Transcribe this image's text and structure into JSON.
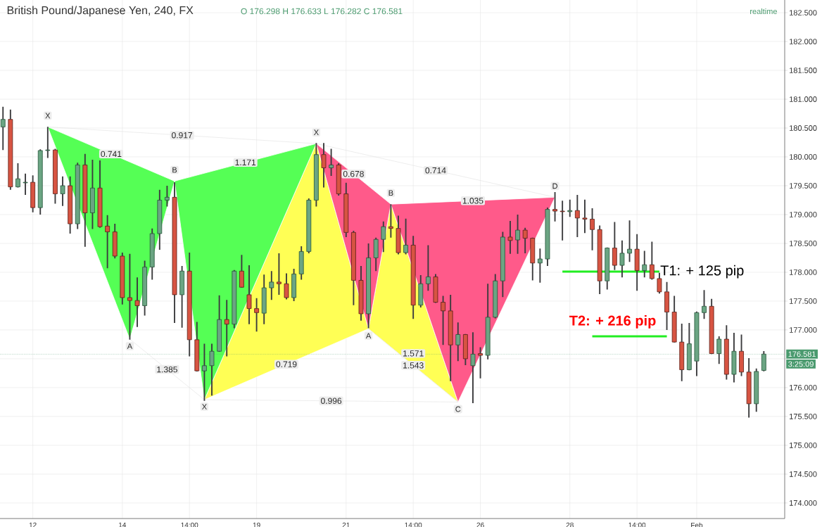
{
  "chart_data": {
    "type": "candlestick",
    "title": "British Pound/Japanese Yen, 240, FX",
    "subtitle": "O 176.298 H 176.633 L 176.282 C 176.581",
    "categories": [
      null,
      null,
      null,
      null,
      "12",
      null,
      null,
      null,
      null,
      null,
      null,
      null,
      null,
      null,
      null,
      null,
      "14",
      null,
      null,
      null,
      null,
      null,
      null,
      null,
      null,
      "14:00",
      null,
      null,
      null,
      null,
      null,
      null,
      null,
      null,
      "19",
      null,
      null,
      null,
      null,
      null,
      null,
      null,
      null,
      null,
      null,
      null,
      "21",
      null,
      null,
      null,
      null,
      null,
      null,
      null,
      null,
      "14:00",
      null,
      null,
      null,
      null,
      null,
      null,
      null,
      null,
      "26",
      null,
      null,
      null,
      null,
      null,
      null,
      null,
      null,
      null,
      null,
      null,
      "28",
      null,
      null,
      null,
      null,
      null,
      null,
      null,
      null,
      "14:00",
      null,
      null,
      null,
      null,
      null,
      null,
      null,
      "Feb",
      null,
      null,
      null,
      null,
      null,
      null,
      null,
      null,
      null
    ],
    "ohlc": [
      [
        180.52,
        180.87,
        180.12,
        180.65
      ],
      [
        180.65,
        180.82,
        179.43,
        179.48
      ],
      [
        179.48,
        179.89,
        179.47,
        179.62
      ],
      [
        179.55,
        179.71,
        179.34,
        179.56
      ],
      [
        179.56,
        179.68,
        179.04,
        179.12
      ],
      [
        179.12,
        180.13,
        179.0,
        180.11
      ],
      [
        180.11,
        180.52,
        179.98,
        180.12
      ],
      [
        180.12,
        180.14,
        179.19,
        179.36
      ],
      [
        179.36,
        179.66,
        179.15,
        179.5
      ],
      [
        179.5,
        179.66,
        178.67,
        178.84
      ],
      [
        178.84,
        179.9,
        178.75,
        179.86
      ],
      [
        179.86,
        180.05,
        178.44,
        179.03
      ],
      [
        179.03,
        179.95,
        178.75,
        179.46
      ],
      [
        179.46,
        179.94,
        178.77,
        178.79
      ],
      [
        178.8,
        178.99,
        178.07,
        178.7
      ],
      [
        178.7,
        178.84,
        178.24,
        178.28
      ],
      [
        178.28,
        178.34,
        177.44,
        177.56
      ],
      [
        177.56,
        178.32,
        176.83,
        177.51
      ],
      [
        177.51,
        177.91,
        177.05,
        177.42
      ],
      [
        177.42,
        178.2,
        177.25,
        178.09
      ],
      [
        178.09,
        178.76,
        177.87,
        178.67
      ],
      [
        178.67,
        179.43,
        178.39,
        179.25
      ],
      [
        179.25,
        179.5,
        179.14,
        179.3
      ],
      [
        179.3,
        179.56,
        177.12,
        177.61
      ],
      [
        177.61,
        178.11,
        177.04,
        178.02
      ],
      [
        178.02,
        178.34,
        176.54,
        176.83
      ],
      [
        176.83,
        177.14,
        176.28,
        176.29
      ],
      [
        176.29,
        176.76,
        175.77,
        176.38
      ],
      [
        176.38,
        176.76,
        175.86,
        176.63
      ],
      [
        176.63,
        177.6,
        176.62,
        177.18
      ],
      [
        177.18,
        177.52,
        176.54,
        177.1
      ],
      [
        177.1,
        178.04,
        177.03,
        178.02
      ],
      [
        178.02,
        178.3,
        177.73,
        177.74
      ],
      [
        177.61,
        178.12,
        177.1,
        177.37
      ],
      [
        177.37,
        177.55,
        176.97,
        177.3
      ],
      [
        177.29,
        177.96,
        177.1,
        177.73
      ],
      [
        177.73,
        178.02,
        177.52,
        177.83
      ],
      [
        177.83,
        178.33,
        177.61,
        177.8
      ],
      [
        177.8,
        177.98,
        177.53,
        177.56
      ],
      [
        177.56,
        178.06,
        177.5,
        177.97
      ],
      [
        177.97,
        178.45,
        177.87,
        178.36
      ],
      [
        178.36,
        179.28,
        178.33,
        179.25
      ],
      [
        179.25,
        180.24,
        179.14,
        180.04
      ],
      [
        180.04,
        180.24,
        179.47,
        179.81
      ],
      [
        179.81,
        180.14,
        179.67,
        179.86
      ],
      [
        179.86,
        179.89,
        179.33,
        179.36
      ],
      [
        179.36,
        179.55,
        178.61,
        178.69
      ],
      [
        178.69,
        178.72,
        177.43,
        177.86
      ],
      [
        177.86,
        178.11,
        177.16,
        177.28
      ],
      [
        177.28,
        178.5,
        177.03,
        178.25
      ],
      [
        178.25,
        178.6,
        178.02,
        178.57
      ],
      [
        178.57,
        178.88,
        178.35,
        178.79
      ],
      [
        178.79,
        179.18,
        178.6,
        178.76
      ],
      [
        178.76,
        178.98,
        178.31,
        178.34
      ],
      [
        178.34,
        178.93,
        178.31,
        178.47
      ],
      [
        178.47,
        178.63,
        177.19,
        177.43
      ],
      [
        177.43,
        177.95,
        177.39,
        177.8
      ],
      [
        177.8,
        178.47,
        177.68,
        177.92
      ],
      [
        177.92,
        177.97,
        177.47,
        177.48
      ],
      [
        177.48,
        177.59,
        176.74,
        177.33
      ],
      [
        177.33,
        177.61,
        176.11,
        176.74
      ],
      [
        176.74,
        177.13,
        176.46,
        176.92
      ],
      [
        176.92,
        176.93,
        176.39,
        176.5
      ],
      [
        176.38,
        176.96,
        175.73,
        176.58
      ],
      [
        176.59,
        176.7,
        176.16,
        176.56
      ],
      [
        176.56,
        177.8,
        176.49,
        177.22
      ],
      [
        177.22,
        177.97,
        177.2,
        177.85
      ],
      [
        177.85,
        178.7,
        177.57,
        178.61
      ],
      [
        178.61,
        178.89,
        178.32,
        178.55
      ],
      [
        178.56,
        179.0,
        178.32,
        178.73
      ],
      [
        178.73,
        178.77,
        178.33,
        178.59
      ],
      [
        178.59,
        178.6,
        177.86,
        178.16
      ],
      [
        178.16,
        178.41,
        177.82,
        178.23
      ],
      [
        178.23,
        179.12,
        178.11,
        179.09
      ],
      [
        179.09,
        179.39,
        178.88,
        179.06
      ],
      [
        179.06,
        179.24,
        178.55,
        179.05
      ],
      [
        179.05,
        179.26,
        178.96,
        179.07
      ],
      [
        179.07,
        179.34,
        178.61,
        178.94
      ],
      [
        178.94,
        179.26,
        178.68,
        178.92
      ],
      [
        178.92,
        179.11,
        178.38,
        178.74
      ],
      [
        178.74,
        178.81,
        177.62,
        177.85
      ],
      [
        177.85,
        178.43,
        177.7,
        178.42
      ],
      [
        178.42,
        178.87,
        178.04,
        178.12
      ],
      [
        178.12,
        178.55,
        177.91,
        178.33
      ],
      [
        178.33,
        178.9,
        178.18,
        178.4
      ],
      [
        178.4,
        178.66,
        177.68,
        178.03
      ],
      [
        178.03,
        178.37,
        177.91,
        178.13
      ],
      [
        178.13,
        178.53,
        177.87,
        177.89
      ],
      [
        177.89,
        177.99,
        177.63,
        177.66
      ],
      [
        177.66,
        177.83,
        177.0,
        177.31
      ],
      [
        177.31,
        177.59,
        176.78,
        176.79
      ],
      [
        176.79,
        177.11,
        176.11,
        176.31
      ],
      [
        176.31,
        177.12,
        176.3,
        176.76
      ],
      [
        176.46,
        177.32,
        176.2,
        177.3
      ],
      [
        177.3,
        177.69,
        177.19,
        177.41
      ],
      [
        177.41,
        177.54,
        176.58,
        176.59
      ],
      [
        176.59,
        176.89,
        176.41,
        176.84
      ],
      [
        176.84,
        177.08,
        176.14,
        176.23
      ],
      [
        176.23,
        176.95,
        176.09,
        176.63
      ],
      [
        176.63,
        176.92,
        176.2,
        176.27
      ],
      [
        176.27,
        176.51,
        175.48,
        175.72
      ],
      [
        175.72,
        176.33,
        175.58,
        176.28
      ],
      [
        176.298,
        176.633,
        176.282,
        176.581
      ]
    ],
    "ylim": [
      173.73,
      182.72
    ],
    "yticks": [
      {
        "value": 174,
        "label": "174.000"
      },
      {
        "value": 174.5,
        "label": "174.500"
      },
      {
        "value": 175,
        "label": "175.000"
      },
      {
        "value": 175.5,
        "label": "175.500"
      },
      {
        "value": 176,
        "label": "176.000"
      },
      {
        "value": 176.5,
        "label": null
      },
      {
        "value": 177,
        "label": "177.000"
      },
      {
        "value": 177.5,
        "label": "177.500"
      },
      {
        "value": 178,
        "label": "178.000"
      },
      {
        "value": 178.5,
        "label": "178.500"
      },
      {
        "value": 179,
        "label": "179.000"
      },
      {
        "value": 179.5,
        "label": "179.500"
      },
      {
        "value": 180,
        "label": "180.000"
      },
      {
        "value": 180.5,
        "label": "180.500"
      },
      {
        "value": 181,
        "label": "181.000"
      },
      {
        "value": 181.5,
        "label": "181.500"
      },
      {
        "value": 182,
        "label": "182.000"
      },
      {
        "value": 182.5,
        "label": "182.500"
      }
    ],
    "grid": true,
    "series": [
      {
        "type": "area",
        "color": "#55ff55",
        "values": [
          null,
          null,
          null,
          null,
          null,
          null,
          180.52,
          null,
          null,
          null,
          null,
          null,
          null,
          null,
          null,
          null,
          null,
          176.84,
          null,
          null,
          null,
          null,
          null,
          179.58,
          null,
          null,
          null,
          175.79,
          null,
          null,
          null,
          null,
          null,
          null,
          null,
          null,
          null,
          null,
          null,
          null,
          null,
          null,
          180.23,
          null,
          null,
          null,
          null,
          null,
          null,
          null,
          null,
          null,
          null,
          null,
          null,
          null,
          null,
          null,
          null,
          null,
          null,
          null,
          null,
          null,
          null,
          null,
          null,
          null,
          null,
          null,
          null,
          null,
          null,
          null,
          null,
          null,
          null,
          null,
          null,
          null,
          null,
          null,
          null,
          null,
          null,
          null,
          null,
          null,
          null,
          null,
          null,
          null,
          null,
          null,
          null,
          null,
          null,
          null,
          null,
          null,
          null,
          null,
          null
        ]
      },
      {
        "type": "area",
        "color": "#ff5a8a",
        "values": [
          null,
          null,
          null,
          null,
          null,
          null,
          null,
          null,
          null,
          null,
          null,
          null,
          null,
          null,
          null,
          null,
          null,
          null,
          null,
          null,
          null,
          null,
          null,
          null,
          null,
          null,
          null,
          null,
          null,
          null,
          null,
          null,
          null,
          null,
          null,
          null,
          null,
          null,
          null,
          null,
          null,
          null,
          180.23,
          null,
          null,
          null,
          null,
          null,
          null,
          177.02,
          null,
          null,
          179.18,
          null,
          null,
          null,
          null,
          null,
          null,
          null,
          null,
          175.75,
          null,
          null,
          null,
          null,
          null,
          null,
          null,
          null,
          null,
          null,
          null,
          null,
          179.3,
          null,
          null,
          null,
          null,
          null,
          null,
          null,
          null,
          null,
          null,
          null,
          null,
          null,
          null,
          null,
          null,
          null,
          null,
          null,
          null,
          null,
          null,
          null,
          null,
          null,
          null,
          null,
          null
        ]
      },
      {
        "type": "area",
        "color": "#ffff55",
        "values": [
          null,
          null,
          null,
          null,
          null,
          null,
          null,
          null,
          null,
          null,
          null,
          null,
          null,
          null,
          null,
          null,
          null,
          null,
          null,
          null,
          null,
          null,
          null,
          null,
          null,
          null,
          null,
          175.79,
          null,
          null,
          null,
          null,
          null,
          null,
          null,
          null,
          null,
          null,
          null,
          null,
          null,
          null,
          180.23,
          null,
          null,
          null,
          null,
          null,
          null,
          177.02,
          null,
          null,
          179.18,
          null,
          null,
          null,
          null,
          null,
          null,
          null,
          null,
          175.75,
          null,
          null,
          null,
          null,
          null,
          null,
          null,
          null,
          null,
          null,
          null,
          null,
          null,
          null,
          null,
          null,
          null,
          null,
          null,
          null,
          null,
          null,
          null,
          null,
          null,
          null,
          null,
          null,
          null,
          null,
          null,
          null,
          null,
          null,
          null,
          null,
          null,
          null,
          null,
          null,
          null
        ]
      },
      {
        "type": "line",
        "color": "#22ee22",
        "values": [
          null,
          null,
          null,
          null,
          null,
          null,
          null,
          null,
          null,
          null,
          null,
          null,
          null,
          null,
          null,
          null,
          null,
          null,
          null,
          null,
          null,
          null,
          null,
          null,
          null,
          null,
          null,
          null,
          null,
          null,
          null,
          null,
          null,
          null,
          null,
          null,
          null,
          null,
          null,
          null,
          null,
          null,
          null,
          null,
          null,
          null,
          null,
          null,
          null,
          null,
          null,
          null,
          null,
          null,
          null,
          null,
          null,
          null,
          null,
          null,
          null,
          null,
          null,
          null,
          null,
          null,
          null,
          null,
          null,
          null,
          null,
          null,
          null,
          null,
          null,
          178.01,
          null,
          null,
          null,
          null,
          null,
          null,
          null,
          null,
          null,
          null,
          null,
          null,
          178.01,
          null,
          null,
          null,
          null,
          null,
          null,
          null,
          null,
          null,
          null,
          null,
          null,
          null,
          null
        ]
      },
      {
        "type": "line",
        "color": "#22ee22",
        "values": [
          null,
          null,
          null,
          null,
          null,
          null,
          null,
          null,
          null,
          null,
          null,
          null,
          null,
          null,
          null,
          null,
          null,
          null,
          null,
          null,
          null,
          null,
          null,
          null,
          null,
          null,
          null,
          null,
          null,
          null,
          null,
          null,
          null,
          null,
          null,
          null,
          null,
          null,
          null,
          null,
          null,
          null,
          null,
          null,
          null,
          null,
          null,
          null,
          null,
          null,
          null,
          null,
          null,
          null,
          null,
          null,
          null,
          null,
          null,
          null,
          null,
          null,
          null,
          null,
          null,
          null,
          null,
          null,
          null,
          null,
          null,
          null,
          null,
          null,
          null,
          null,
          null,
          null,
          null,
          176.89,
          null,
          null,
          null,
          null,
          null,
          null,
          null,
          null,
          null,
          176.89,
          null,
          null,
          null,
          null,
          null,
          null,
          null,
          null,
          null,
          null,
          null,
          null,
          null
        ]
      }
    ],
    "ref_lines": [
      {
        "axis": "y",
        "value": 176.581,
        "label": "176.581",
        "color": "#4a9a6e",
        "line_style": "dotted"
      }
    ],
    "annotations": [
      "X",
      "A",
      "B",
      "X",
      "X",
      "A",
      "B",
      "C",
      "D",
      "T1: + 125 pip",
      "T2: + 216 pip",
      "0.741",
      "0.917",
      "1.171",
      "1.385",
      "0.678",
      "0.714",
      "1.035",
      "1.543",
      "0.719",
      "0.996",
      "1.571",
      "realtime",
      "3:25:09"
    ]
  }
}
